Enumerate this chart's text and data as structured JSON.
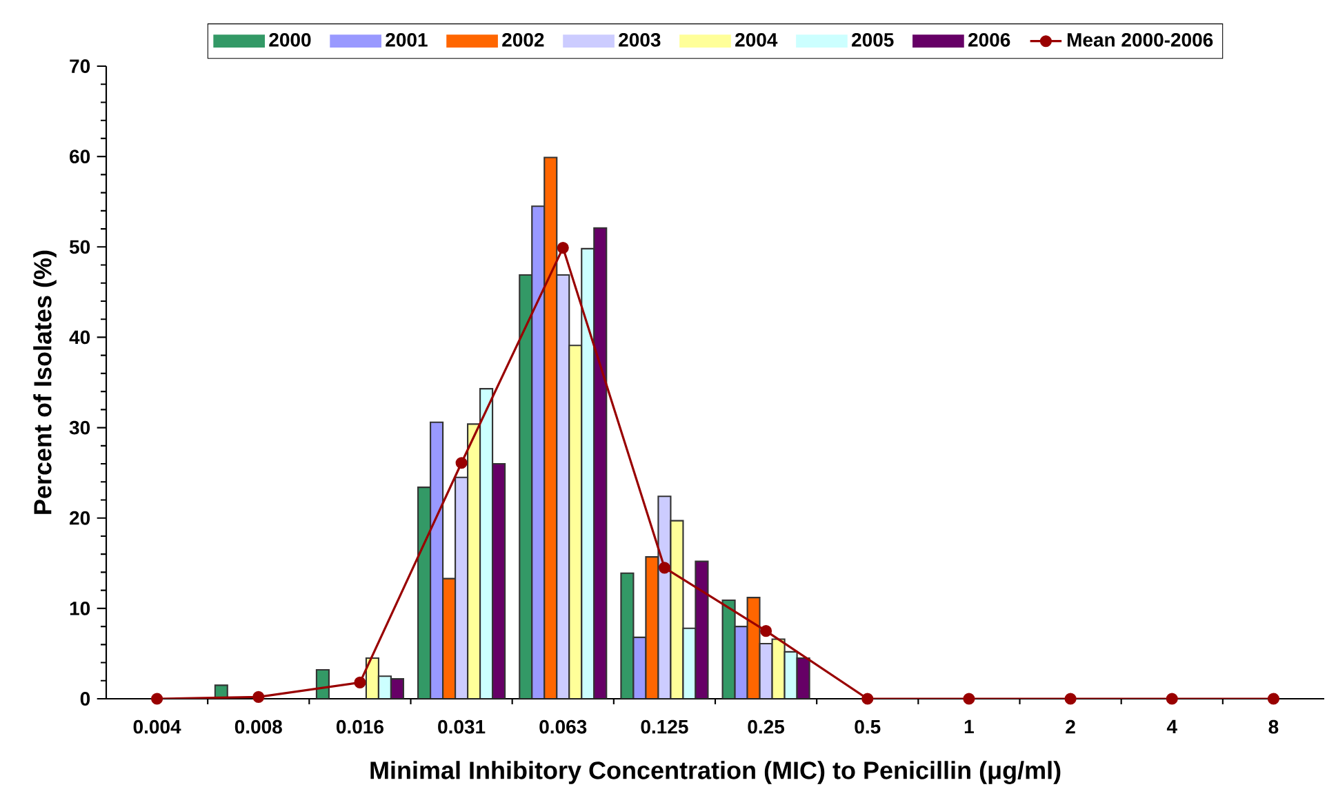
{
  "chart_data": {
    "type": "bar",
    "xlabel": "Minimal Inhibitory Concentration (MIC) to Penicillin (μg/ml)",
    "ylabel": "Percent of Isolates (%)",
    "categories": [
      "0.004",
      "0.008",
      "0.016",
      "0.031",
      "0.063",
      "0.125",
      "0.25",
      "0.5",
      "1",
      "2",
      "4",
      "8"
    ],
    "ylim": [
      0,
      70
    ],
    "yticks": [
      0,
      10,
      20,
      30,
      40,
      50,
      60,
      70
    ],
    "legend": "top",
    "series": [
      {
        "name": "2000",
        "color": "#339966",
        "values": [
          0,
          1.5,
          3.2,
          23.4,
          46.9,
          13.9,
          10.9,
          0,
          0,
          0,
          0,
          0
        ]
      },
      {
        "name": "2001",
        "color": "#9999ff",
        "values": [
          0,
          0,
          0,
          30.6,
          54.5,
          6.8,
          8.0,
          0,
          0,
          0,
          0,
          0
        ]
      },
      {
        "name": "2002",
        "color": "#ff6600",
        "values": [
          0,
          0,
          0,
          13.3,
          59.9,
          15.7,
          11.2,
          0,
          0,
          0,
          0,
          0
        ]
      },
      {
        "name": "2003",
        "color": "#ccccff",
        "values": [
          0,
          0,
          0,
          24.5,
          46.9,
          22.4,
          6.1,
          0,
          0,
          0,
          0,
          0
        ]
      },
      {
        "name": "2004",
        "color": "#ffff99",
        "values": [
          0,
          0,
          4.5,
          30.4,
          39.1,
          19.7,
          6.6,
          0,
          0,
          0,
          0,
          0
        ]
      },
      {
        "name": "2005",
        "color": "#ccffff",
        "values": [
          0,
          0,
          2.5,
          34.3,
          49.8,
          7.8,
          5.2,
          0,
          0,
          0,
          0,
          0
        ]
      },
      {
        "name": "2006",
        "color": "#660066",
        "values": [
          0,
          0,
          2.2,
          26.0,
          52.1,
          15.2,
          4.5,
          0,
          0,
          0,
          0,
          0
        ]
      },
      {
        "name": "Mean 2000-2006",
        "type": "line",
        "marker": "circle",
        "color": "#990000",
        "values": [
          0,
          0.2,
          1.8,
          26.1,
          49.9,
          14.5,
          7.5,
          0,
          0,
          0,
          0,
          0
        ]
      }
    ]
  }
}
